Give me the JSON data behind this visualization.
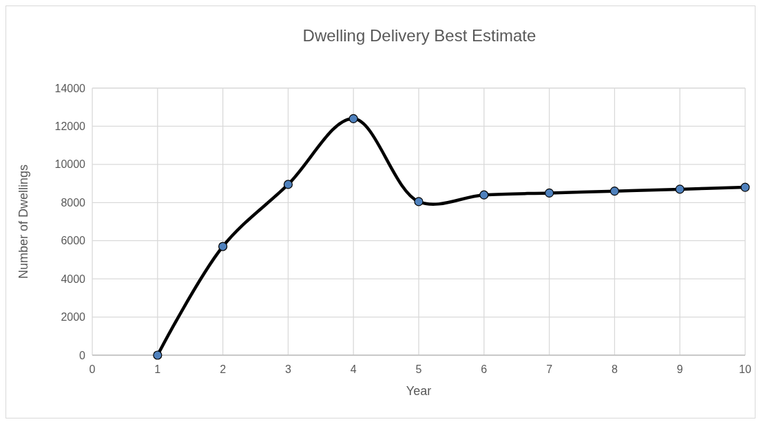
{
  "chart_data": {
    "type": "line",
    "title": "Dwelling Delivery Best Estimate",
    "xlabel": "Year",
    "ylabel": "Number of Dwellings",
    "x": [
      1,
      2,
      3,
      4,
      5,
      6,
      7,
      8,
      9,
      10
    ],
    "series": [
      {
        "color": "#000000",
        "values": [
          0,
          5700,
          8950,
          12400,
          8050,
          8400,
          8500,
          8600,
          8700,
          8800
        ]
      }
    ],
    "xlim": [
      0,
      10
    ],
    "xticks": [
      0,
      1,
      2,
      3,
      4,
      5,
      6,
      7,
      8,
      9,
      10
    ],
    "ylim": [
      0,
      14000
    ],
    "yticks": [
      0,
      2000,
      4000,
      6000,
      8000,
      10000,
      12000,
      14000
    ],
    "grid": true,
    "marker": "circle",
    "line_style": "solid"
  }
}
